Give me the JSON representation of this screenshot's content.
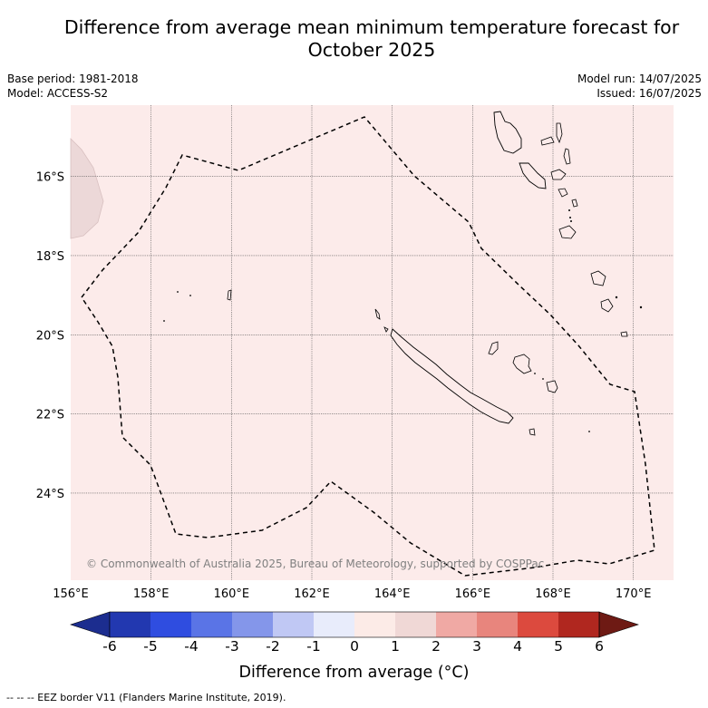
{
  "header": {
    "title_line1": "Difference from average mean minimum temperature forecast for",
    "title_line2": "October 2025",
    "base_period": "Base period: 1981-2018",
    "model": "Model: ACCESS-S2",
    "model_run": "Model run: 14/07/2025",
    "issued": "Issued: 16/07/2025"
  },
  "map": {
    "lon_range": [
      156,
      171
    ],
    "lat_range": [
      -26.2,
      -14.2
    ],
    "lon_ticks": [
      "156°E",
      "158°E",
      "160°E",
      "162°E",
      "164°E",
      "166°E",
      "168°E",
      "170°E"
    ],
    "lat_ticks": [
      "16°S",
      "18°S",
      "20°S",
      "22°S",
      "24°S"
    ],
    "grid": true,
    "background_color": "#fcebea",
    "copyright": "© Commonwealth of Australia 2025, Bureau of Meteorology, supported by COSPPac"
  },
  "colorbar": {
    "ticks": [
      "-6",
      "-5",
      "-4",
      "-3",
      "-2",
      "-1",
      "0",
      "1",
      "2",
      "3",
      "4",
      "5",
      "6"
    ],
    "colors": [
      "#1c2d8f",
      "#2238b0",
      "#2f4de0",
      "#5a74e6",
      "#8496ea",
      "#c0c8f4",
      "#e8ecfb",
      "#fcebe7",
      "#f0d8d6",
      "#f0a9a4",
      "#e8857d",
      "#dc4a3e",
      "#b0271f",
      "#6e1a14"
    ],
    "label": "Difference from average (°C)"
  },
  "footnote": "--  --  -- EEZ border V11 (Flanders Marine Institute, 2019)."
}
